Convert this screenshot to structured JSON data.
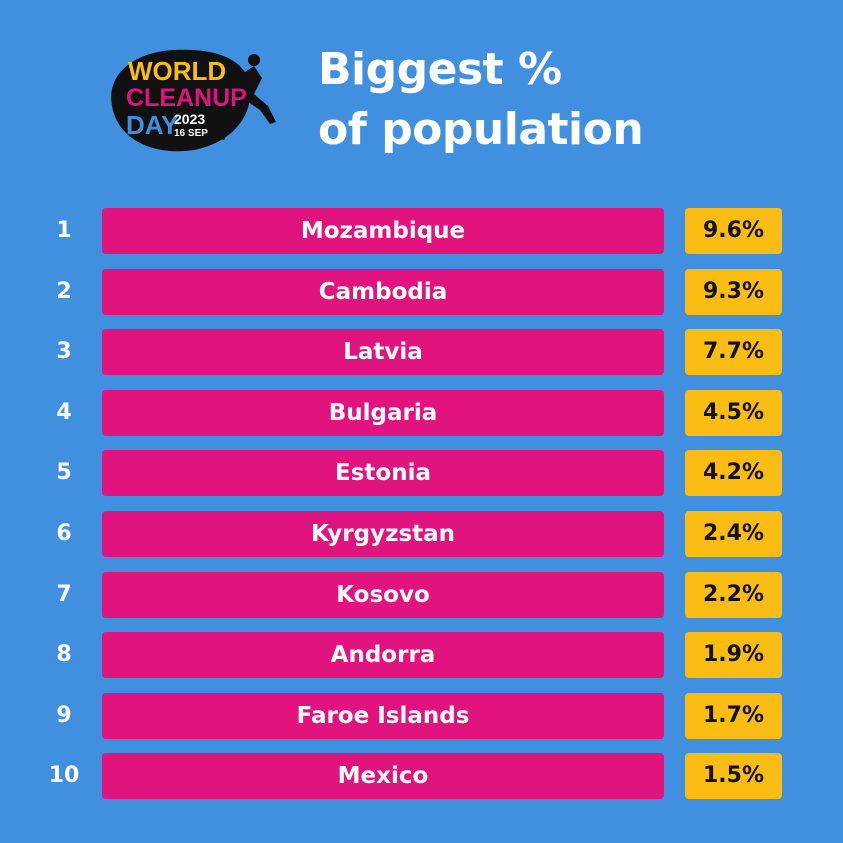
{
  "logo": {
    "line1": "WORLD",
    "line2": "CLEANUP",
    "line3": "DAY",
    "year": "2023",
    "date": "16 SEP"
  },
  "header": {
    "title_line1": "Biggest %",
    "title_line2": "of population"
  },
  "chart_data": {
    "type": "table",
    "title": "Biggest % of population",
    "unit": "%",
    "rows": [
      {
        "rank": "1",
        "country": "Mozambique",
        "value": 9.6,
        "label": "9.6%"
      },
      {
        "rank": "2",
        "country": "Cambodia",
        "value": 9.3,
        "label": "9.3%"
      },
      {
        "rank": "3",
        "country": "Latvia",
        "value": 7.7,
        "label": "7.7%"
      },
      {
        "rank": "4",
        "country": "Bulgaria",
        "value": 4.5,
        "label": "4.5%"
      },
      {
        "rank": "5",
        "country": "Estonia",
        "value": 4.2,
        "label": "4.2%"
      },
      {
        "rank": "6",
        "country": "Kyrgyzstan",
        "value": 2.4,
        "label": "2.4%"
      },
      {
        "rank": "7",
        "country": "Kosovo",
        "value": 2.2,
        "label": "2.2%"
      },
      {
        "rank": "8",
        "country": "Andorra",
        "value": 1.9,
        "label": "1.9%"
      },
      {
        "rank": "9",
        "country": "Faroe Islands",
        "value": 1.7,
        "label": "1.7%"
      },
      {
        "rank": "10",
        "country": "Mexico",
        "value": 1.5,
        "label": "1.5%"
      }
    ]
  },
  "colors": {
    "background": "#418fdf",
    "country_bar": "#e0137f",
    "value_box": "#fbbc13",
    "logo_yellow": "#fbbc13",
    "logo_pink": "#e0137f",
    "logo_blue": "#418fdf"
  }
}
